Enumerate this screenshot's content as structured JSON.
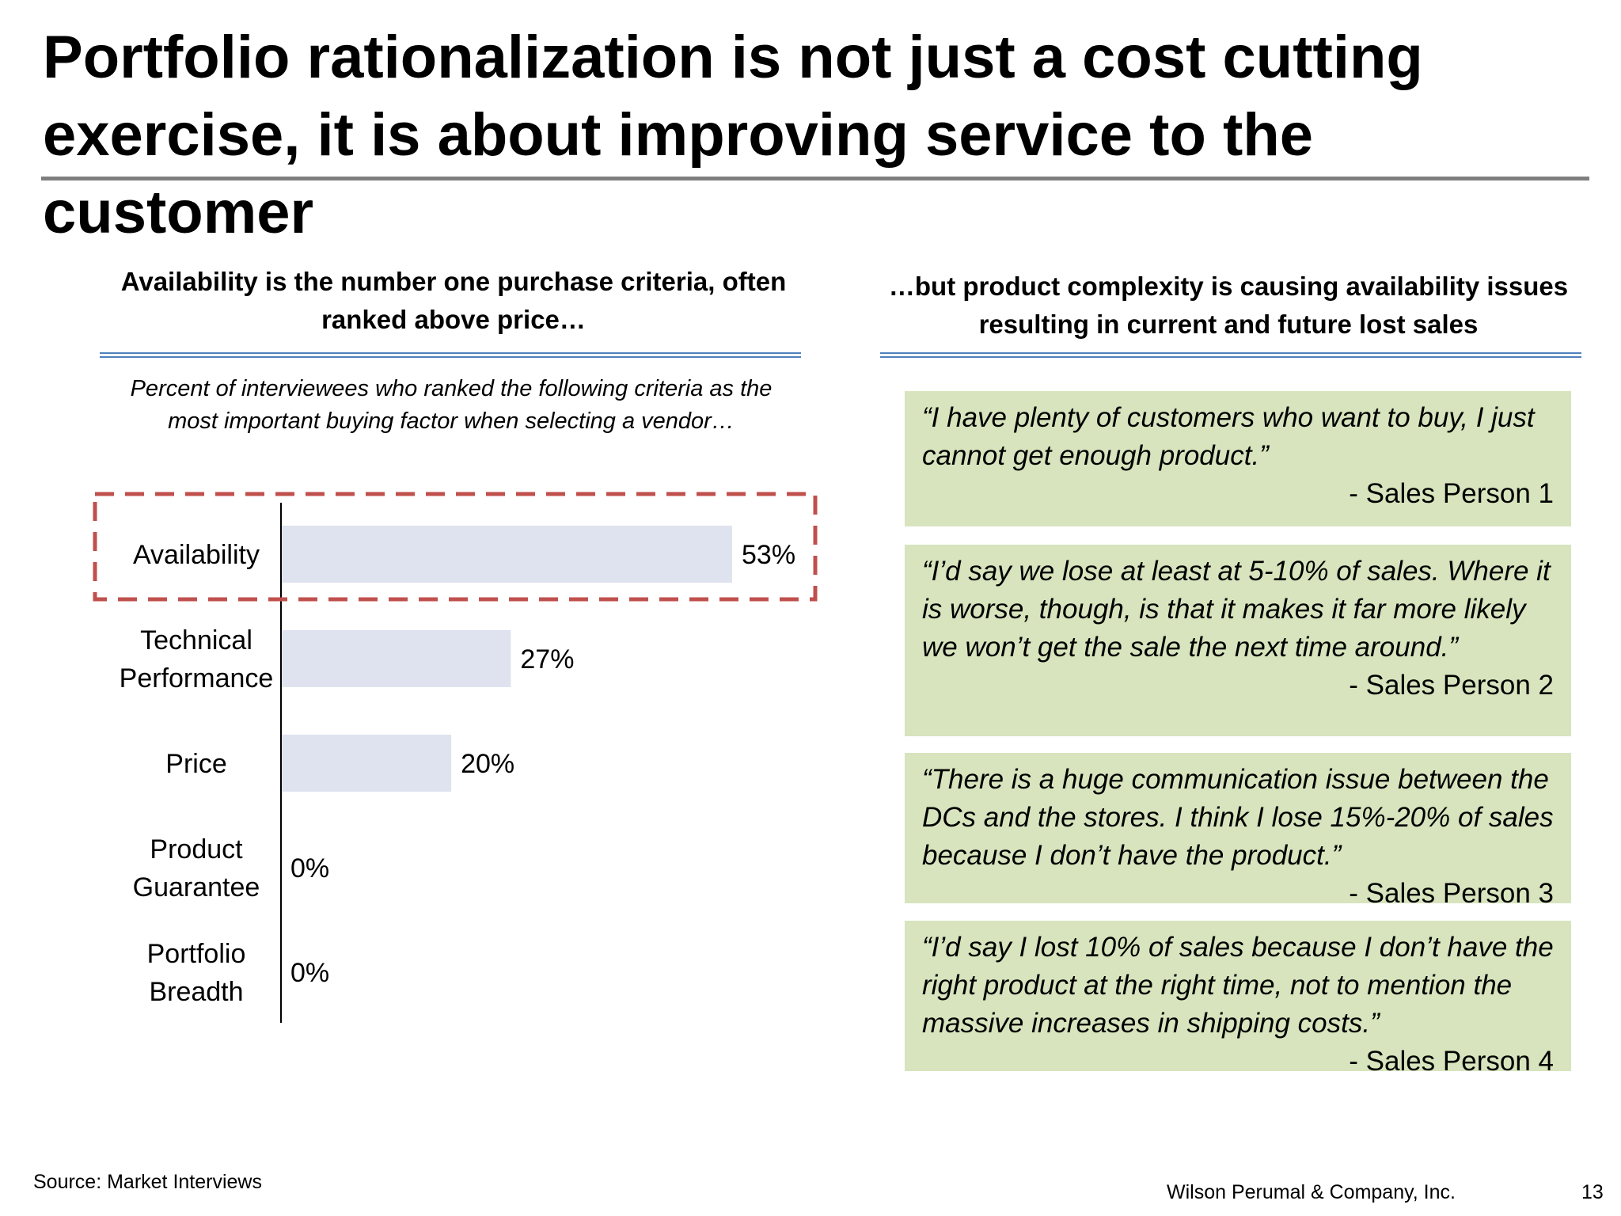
{
  "slide": {
    "title": "Portfolio rationalization is not just a cost cutting exercise, it is about improving service to the customer"
  },
  "left_panel": {
    "heading": "Availability is the number one purchase criteria, often ranked above price…",
    "caption": "Percent of interviewees who ranked the following criteria as the most important buying factor when selecting a vendor…"
  },
  "right_panel": {
    "heading": "…but product complexity is causing availability issues resulting in current and future lost sales",
    "quotes": [
      {
        "text": "“I have plenty of customers who want to buy, I just cannot get enough product.”",
        "author": "- Sales Person 1"
      },
      {
        "text": "“I’d say we lose at least at 5-10% of sales. Where it is worse, though, is that it makes it far more likely we won’t get the sale the next time around.”",
        "author": "- Sales Person 2"
      },
      {
        "text": "“There is a huge communication issue between the DCs and the stores. I think I lose 15%-20% of sales because I don’t have the product.”",
        "author": "- Sales Person 3"
      },
      {
        "text": "“I’d say I lost 10% of sales because I don’t have the right product at the right time, not to mention the massive increases in shipping costs.”",
        "author": "- Sales Person 4"
      }
    ]
  },
  "chart_data": {
    "type": "bar",
    "orientation": "horizontal",
    "categories": [
      [
        "Availability"
      ],
      [
        "Technical",
        "Performance"
      ],
      [
        "Price"
      ],
      [
        "Product",
        "Guarantee"
      ],
      [
        "Portfolio",
        "Breadth"
      ]
    ],
    "values": [
      53,
      27,
      20,
      0,
      0
    ],
    "value_labels": [
      "53%",
      "27%",
      "20%",
      "0%",
      "0%"
    ],
    "xlim": [
      0,
      53
    ],
    "grid": false,
    "highlight": "Availability",
    "bar_color": "#dfe3ef",
    "highlight_color": "#c0504d"
  },
  "footer": {
    "source": "Source: Market Interviews",
    "company": "Wilson Perumal & Company, Inc.",
    "page_number": "13"
  }
}
